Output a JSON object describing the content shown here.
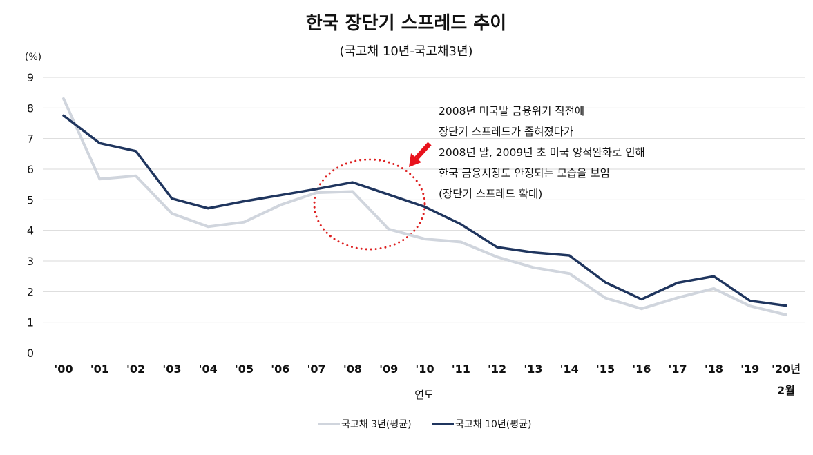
{
  "chart_data": {
    "type": "line",
    "title": "한국 장단기 스프레드 추이",
    "subtitle": "(국고채 10년-국고채3년)",
    "unit_label": "(%)",
    "xlabel": "연도",
    "categories": [
      "'00",
      "'01",
      "'02",
      "'03",
      "'04",
      "'05",
      "'06",
      "'07",
      "'08",
      "'09",
      "'10",
      "'11",
      "'12",
      "'13",
      "'14",
      "'15",
      "'16",
      "'17",
      "'18",
      "'19",
      "'20년"
    ],
    "last_category_line2": "2월",
    "ylim": [
      0,
      9
    ],
    "yticks": [
      0,
      1,
      2,
      3,
      4,
      5,
      6,
      7,
      8,
      9
    ],
    "grid": true,
    "legend_position": "bottom-center",
    "series": [
      {
        "name": "국고채 3년(평균)",
        "color": "#d0d5dd",
        "values": [
          8.3,
          5.68,
          5.78,
          4.55,
          4.12,
          4.27,
          4.83,
          5.23,
          5.27,
          4.04,
          3.72,
          3.62,
          3.13,
          2.79,
          2.59,
          1.79,
          1.44,
          1.8,
          2.1,
          1.53,
          1.24
        ]
      },
      {
        "name": "국고채 10년(평균)",
        "color": "#1f355e",
        "values": [
          7.75,
          6.85,
          6.59,
          5.04,
          4.72,
          4.95,
          5.15,
          5.35,
          5.57,
          5.17,
          4.77,
          4.2,
          3.45,
          3.28,
          3.18,
          2.3,
          1.75,
          2.29,
          2.5,
          1.7,
          1.54
        ]
      }
    ],
    "annotation": {
      "lines": [
        "2008년 미국발 금융위기 직전에",
        "장단기 스프레드가 좁혀졌다가",
        "2008년 말, 2009년 초 미국 양적완화로 인해",
        "한국 금융시장도 안정되는 모습을 보임",
        "(장단기 스프레드 확대)"
      ],
      "circle_color": "#dd1f1f",
      "arrow_color": "#e8121c"
    }
  }
}
